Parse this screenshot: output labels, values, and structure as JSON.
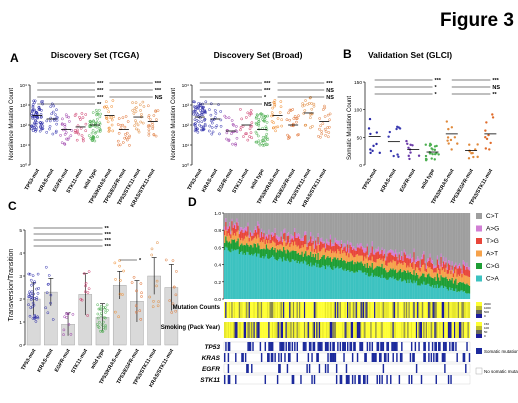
{
  "figure_label": "Figure 3",
  "panels": [
    {
      "letter": "A",
      "title": "Discovery Set (TCGA)",
      "ylabel": "Nonsilence Mutation Count"
    },
    {
      "letter": "",
      "title": "Discovery Set (Broad)",
      "ylabel": "Nonsilence Mutation Count"
    },
    {
      "letter": "B",
      "title": "Validation Set (GLCI)",
      "ylabel": "Somatic Mutation Count"
    },
    {
      "letter": "C",
      "title": "",
      "ylabel": "Transversion/Transition"
    },
    {
      "letter": "D",
      "title": "",
      "ylabel": ""
    }
  ],
  "sig": {
    "s1": "*",
    "s2": "**",
    "s3": "***",
    "ns": "NS"
  },
  "chart_data": [
    {
      "type": "scatter",
      "title": "Discovery Set (TCGA)",
      "ylabel": "Nonsilence Mutation Count",
      "yscale": "log",
      "yticks": [
        "10⁰",
        "10¹",
        "10²",
        "10³",
        "10⁴"
      ],
      "categories": [
        "TP53-mut",
        "KRAS-mut",
        "EGFR-mut",
        "STK11-mut",
        "wild type",
        "TP53/KRAS-mut",
        "TP53/EGFR-mut",
        "TP53/STK11-mut",
        "KRAS/STK11-mut"
      ],
      "medians": [
        300,
        200,
        60,
        80,
        100,
        300,
        60,
        250,
        150
      ],
      "comparisons": [
        "***",
        "***",
        "***",
        "**",
        "***",
        "***",
        "NS"
      ]
    },
    {
      "type": "scatter",
      "title": "Discovery Set (Broad)",
      "ylabel": "Nonsilence Mutation Count",
      "yscale": "log",
      "yticks": [
        "10⁰",
        "10¹",
        "10²",
        "10³",
        "10⁴"
      ],
      "categories": [
        "TP53-mut",
        "KRAS-mut",
        "EGFR-mut",
        "STK11-mut",
        "wild type",
        "TP53/KRAS-mut",
        "TP53/EGFR-mut",
        "TP53/STK11-mut",
        "KRAS/STK11-mut"
      ],
      "medians": [
        250,
        200,
        50,
        100,
        60,
        300,
        100,
        400,
        150
      ],
      "comparisons": [
        "***",
        "***",
        "*",
        "NS",
        "***",
        "NS",
        "NS",
        "**"
      ]
    },
    {
      "type": "scatter",
      "title": "Validation Set (GLCI)",
      "ylabel": "Somatic Mutation Count",
      "yticks": [
        "0",
        "50",
        "100",
        "150"
      ],
      "ylim": [
        0,
        160
      ],
      "categories": [
        "TP53-mut",
        "KRAS-mut",
        "EGFR-mut",
        "wild type",
        "TP53/KRAS-mut",
        "TP53/EGFR-mut",
        "TP53/STK11-mut"
      ],
      "medians": [
        55,
        45,
        30,
        25,
        60,
        28,
        60
      ],
      "comparisons": [
        "***",
        "*",
        "*",
        "***",
        "NS",
        "**"
      ]
    },
    {
      "type": "bar",
      "ylabel": "Transversion/Transition",
      "yticks": [
        "0",
        "1",
        "2",
        "3",
        "4",
        "5"
      ],
      "ylim": [
        0,
        5
      ],
      "categories": [
        "TP53-mut",
        "KRAS-mut",
        "EGFR-mut",
        "STK11-mut",
        "wild type",
        "TP53/KRAS-mut",
        "TP53/EGFR-mut",
        "TP53/STK11-mut",
        "KRAS/STK11-mut"
      ],
      "values": [
        2.0,
        2.3,
        0.9,
        2.2,
        1.2,
        2.6,
        1.9,
        3.0,
        2.5
      ],
      "errors": [
        0.7,
        0.6,
        0.5,
        0.9,
        0.6,
        0.6,
        0.9,
        0.8,
        1.0
      ],
      "comparisons": [
        "**",
        "***",
        "***",
        "***",
        "*"
      ]
    },
    {
      "type": "area",
      "yticks": [
        "0.0",
        "0.2",
        "0.4",
        "0.6",
        "0.8",
        "1.0"
      ],
      "ylim": [
        0,
        1
      ],
      "legend": [
        {
          "label": "C>T",
          "color": "#9e9e9e"
        },
        {
          "label": "A>G",
          "color": "#d17fd4"
        },
        {
          "label": "T>G",
          "color": "#e8463a"
        },
        {
          "label": "A>T",
          "color": "#f6a24b"
        },
        {
          "label": "C>G",
          "color": "#1e9e35"
        },
        {
          "label": "C>A",
          "color": "#3cc2c0"
        }
      ],
      "tracks": [
        {
          "label": "Mutation Counts",
          "legend": [
            "2000",
            "1000",
            "500",
            "0"
          ]
        },
        {
          "label": "Smoking (Pack Year)",
          "legend": [
            "150",
            "100",
            "50",
            "0"
          ]
        }
      ],
      "genes": [
        "TP53",
        "KRAS",
        "EGFR",
        "STK11"
      ],
      "gene_legend": [
        "Somatic mutation",
        "No somatic mutation"
      ]
    }
  ]
}
